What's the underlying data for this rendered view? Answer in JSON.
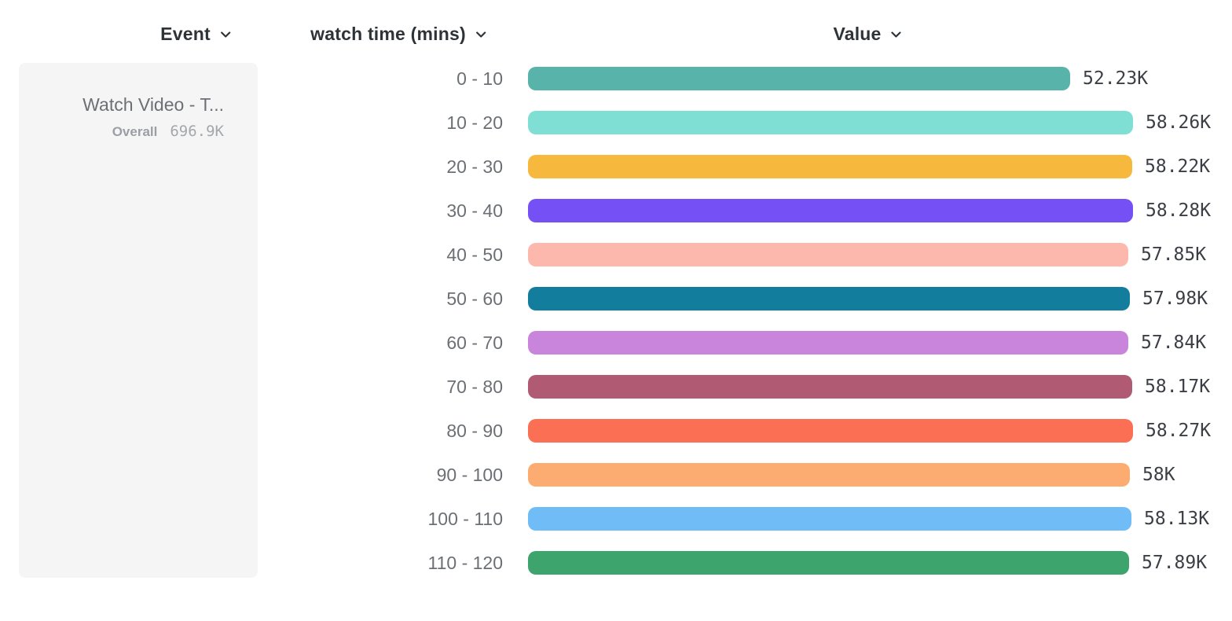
{
  "header": {
    "columns": [
      {
        "label": "Event"
      },
      {
        "label": "watch time (mins)"
      },
      {
        "label": "Value"
      }
    ]
  },
  "event_card": {
    "title": "Watch Video - T...",
    "overall_label": "Overall",
    "overall_value": "696.9K"
  },
  "chart_data": {
    "type": "bar",
    "orientation": "horizontal",
    "title": "",
    "xlabel": "Value",
    "ylabel": "watch time (mins)",
    "xlim": [
      0,
      58280
    ],
    "grid": false,
    "legend": "none",
    "categories": [
      "0 - 10",
      "10 - 20",
      "20 - 30",
      "30 - 40",
      "40 - 50",
      "50 - 60",
      "60 - 70",
      "70 - 80",
      "80 - 90",
      "90 - 100",
      "100 - 110",
      "110 - 120"
    ],
    "values": [
      52230,
      58260,
      58220,
      58280,
      57850,
      57980,
      57840,
      58170,
      58270,
      58000,
      58130,
      57890
    ],
    "value_labels": [
      "52.23K",
      "58.26K",
      "58.22K",
      "58.28K",
      "57.85K",
      "57.98K",
      "57.84K",
      "58.17K",
      "58.27K",
      "58K",
      "58.13K",
      "57.89K"
    ],
    "bar_colors": [
      "#58b3ab",
      "#7fdfd5",
      "#f6b83d",
      "#7550f5",
      "#fdb8ae",
      "#137d9e",
      "#c985dc",
      "#b05a73",
      "#fb7054",
      "#fcab71",
      "#70bcf6",
      "#3ea46e"
    ]
  },
  "colors": {
    "card_background": "#f5f5f6",
    "header_text": "#2e3338",
    "label_text": "#6c7075",
    "value_text": "#3b3f45",
    "muted_text": "#9b9ea3"
  }
}
